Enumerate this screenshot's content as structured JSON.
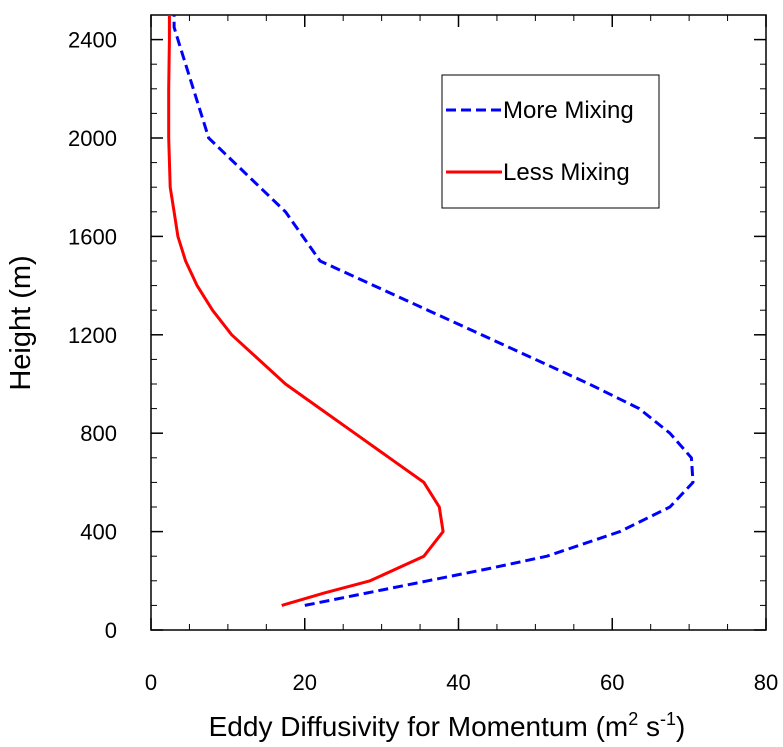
{
  "chart_data": {
    "type": "line",
    "xlabel": "Eddy Diffusivity for Momentum (m",
    "xlabel_sup1": "2",
    "xlabel_mid": " s",
    "xlabel_sup2": "-1",
    "xlabel_end": ")",
    "ylabel": "Height (m)",
    "xlim": [
      0,
      80
    ],
    "ylim": [
      0,
      2500
    ],
    "xticks": [
      0,
      20,
      40,
      60,
      80
    ],
    "yticks": [
      0,
      400,
      800,
      1200,
      1600,
      2000,
      2400
    ],
    "xtick_labels": [
      "0",
      "20",
      "40",
      "60",
      "80"
    ],
    "ytick_labels": [
      "0",
      "400",
      "800",
      "1200",
      "1600",
      "2000",
      "2400"
    ],
    "legend_position": "top-right",
    "grid": false,
    "series": [
      {
        "name": "More Mixing",
        "color": "#0000ff",
        "dash": "dashed",
        "x": [
          20,
          28,
          36,
          44,
          51.5,
          61,
          67.5,
          70.5,
          70.3,
          67.5,
          63.5,
          57,
          50,
          43,
          36,
          29,
          22,
          17.5,
          12.5,
          7.5,
          5.5,
          3.5,
          3,
          3
        ],
        "y": [
          100,
          150,
          200,
          250,
          300,
          400,
          500,
          600,
          700,
          800,
          900,
          1000,
          1100,
          1200,
          1300,
          1400,
          1500,
          1700,
          1850,
          2000,
          2200,
          2400,
          2450,
          2500
        ]
      },
      {
        "name": "Less Mixing",
        "color": "#ff0000",
        "dash": "solid",
        "x": [
          17,
          22.5,
          28.5,
          35.5,
          38,
          37.5,
          35.5,
          31,
          26.5,
          22,
          17.5,
          14,
          10.5,
          8,
          6,
          4.5,
          3.5,
          3,
          2.5,
          2.3,
          2.3,
          2.4,
          2.4
        ],
        "y": [
          100,
          150,
          200,
          300,
          400,
          500,
          600,
          700,
          800,
          900,
          1000,
          1100,
          1200,
          1300,
          1400,
          1500,
          1600,
          1700,
          1800,
          2000,
          2200,
          2400,
          2500
        ]
      }
    ]
  }
}
